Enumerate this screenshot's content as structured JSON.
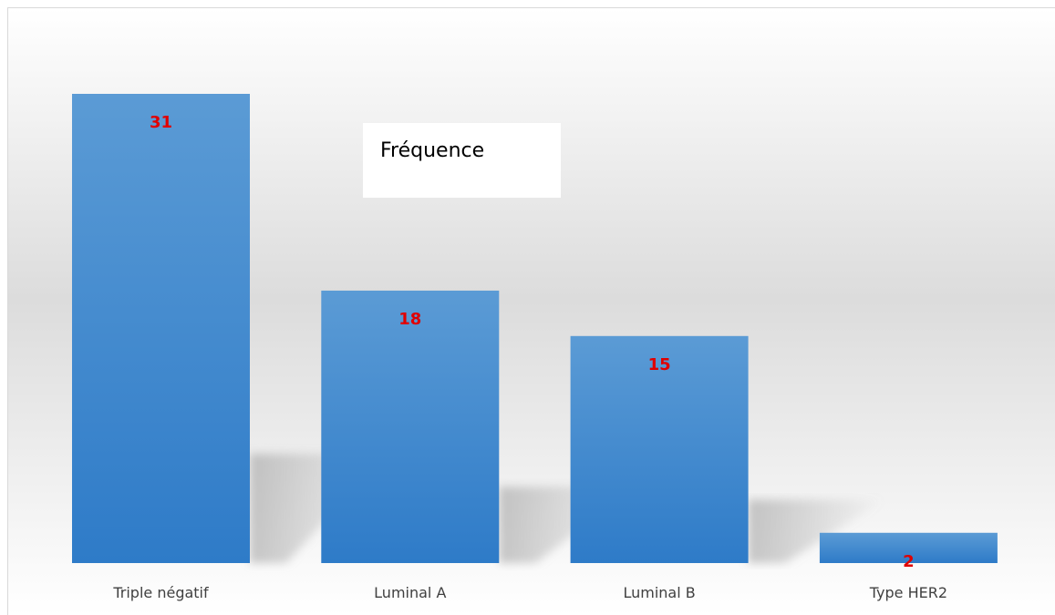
{
  "chart_data": {
    "type": "bar",
    "categories": [
      "Triple négatif",
      "Luminal A",
      "Luminal B",
      "Type HER2"
    ],
    "series": [
      {
        "name": "Fréquence",
        "values": [
          31,
          18,
          15,
          2
        ]
      }
    ],
    "ylim": [
      0,
      31
    ],
    "grid": false,
    "legend_position": "top-center",
    "colors": {
      "bar_top": "#5B9BD5",
      "bar_bottom": "#2E7BC8",
      "label": "#E00000",
      "background_mid": "#DDDDDD"
    }
  }
}
